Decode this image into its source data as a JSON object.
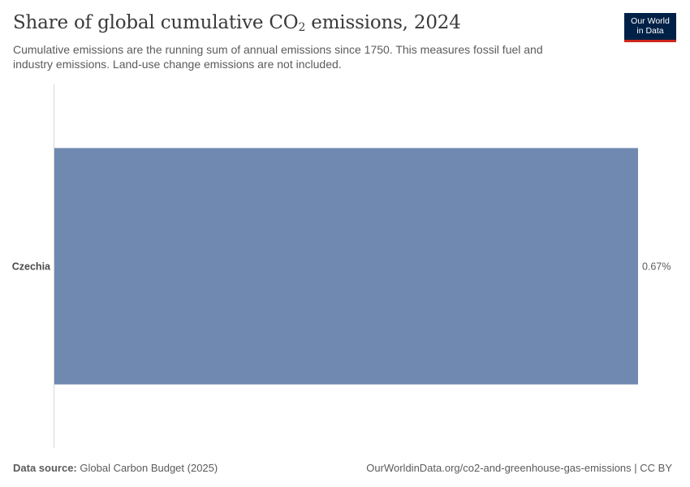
{
  "header": {
    "title_main": "Share of global cumulative CO",
    "title_sub": "2",
    "title_tail": " emissions, 2024",
    "subtitle": "Cumulative emissions are the running sum of annual emissions since 1750. This measures fossil fuel and industry emissions. Land-use change emissions are not included."
  },
  "logo": {
    "line1": "Our World",
    "line2": "in Data"
  },
  "chart_data": {
    "type": "bar",
    "orientation": "horizontal",
    "categories": [
      "Czechia"
    ],
    "values": [
      0.67
    ],
    "value_labels": [
      "0.67%"
    ],
    "unit": "%",
    "color": "#6f89b0",
    "title": "Share of global cumulative CO₂ emissions, 2024",
    "xlabel": "",
    "ylabel": "",
    "xlim": [
      0,
      0.67
    ],
    "grid": false
  },
  "footer": {
    "source_label": "Data source:",
    "source_value": "Global Carbon Budget (2025)",
    "url": "OurWorldinData.org/co2-and-greenhouse-gas-emissions | CC BY"
  },
  "colors": {
    "bar": "#6f89b0",
    "logo_bg": "#002147",
    "logo_accent": "#ce261e",
    "text": "#5b5b5b"
  }
}
